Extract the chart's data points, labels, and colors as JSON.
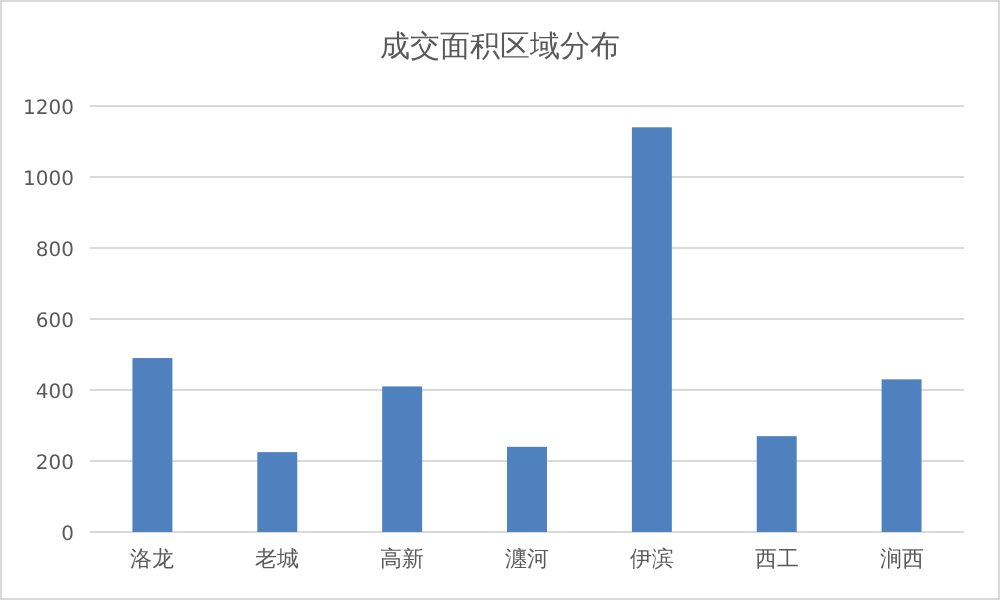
{
  "chart_data": {
    "type": "bar",
    "title": "成交面积区域分布",
    "categories": [
      "洛龙",
      "老城",
      "高新",
      "瀍河",
      "伊滨",
      "西工",
      "涧西"
    ],
    "values": [
      490,
      225,
      410,
      240,
      1140,
      270,
      430
    ],
    "color": "#4e81bd",
    "ylim": [
      0,
      1200
    ],
    "yticks": [
      0,
      200,
      400,
      600,
      800,
      1000,
      1200
    ],
    "grid": "y"
  }
}
